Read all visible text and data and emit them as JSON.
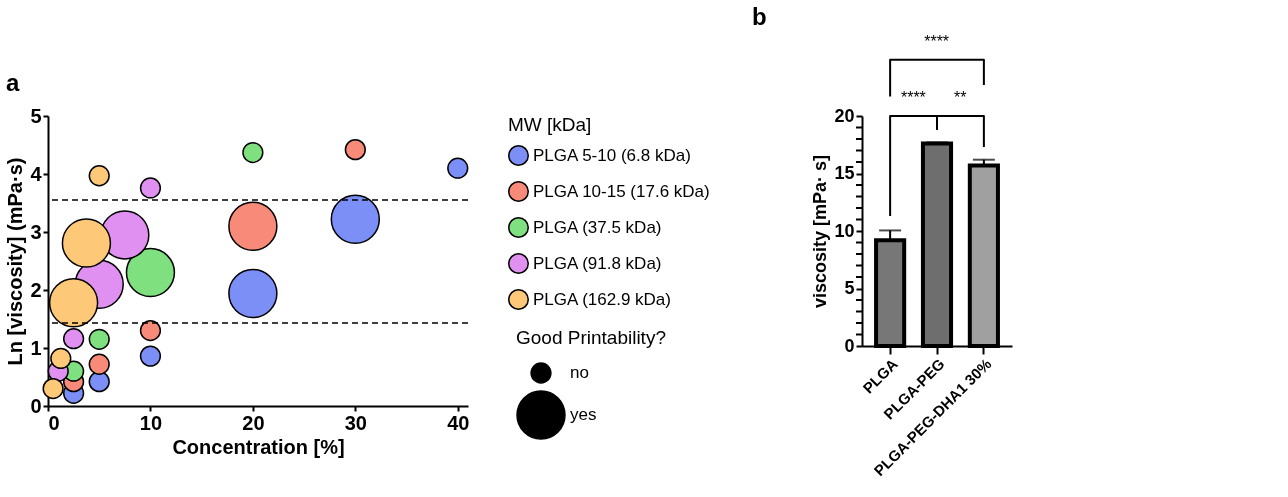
{
  "chart_data": [
    {
      "type": "bubble",
      "title": "a",
      "xlabel": "Concentration [%]",
      "ylabel": "Ln [viscosity] (mPa·s)",
      "legend_title": [
        "MW [kDa]",
        "Good Printability?"
      ],
      "legend": "right",
      "xlim": [
        0,
        41
      ],
      "xticks": [
        0,
        10,
        20,
        30,
        40
      ],
      "ylim": [
        0,
        5
      ],
      "yticks": [
        0,
        1,
        2,
        3,
        4,
        5
      ],
      "grid": false,
      "marker": "circle",
      "size_legend": [
        {
          "value": 0.17,
          "label": "no"
        },
        {
          "value": 1,
          "label": "yes"
        }
      ],
      "ref_lines": [
        {
          "axis": "y",
          "value": 3.55,
          "line_style": "dashed",
          "color": "#000000"
        },
        {
          "axis": "y",
          "value": 1.43,
          "line_style": "dashed",
          "color": "#000000"
        }
      ],
      "series": [
        {
          "name": "PLGA 5-10 (6.8 kDa)",
          "color": "#7b8ff7",
          "x": [
            2.5,
            5,
            10,
            20,
            30,
            40
          ],
          "values": [
            0.22,
            0.42,
            0.86,
            1.94,
            3.22,
            4.1
          ],
          "sizes": [
            0.17,
            0.17,
            0.17,
            1,
            1,
            0.17
          ]
        },
        {
          "name": "PLGA 10-15 (17.6 kDa)",
          "color": "#f78a78",
          "x": [
            2.5,
            5,
            10,
            20,
            30
          ],
          "values": [
            0.42,
            0.72,
            1.3,
            3.1,
            4.42
          ],
          "sizes": [
            0.17,
            0.17,
            0.17,
            1,
            0.17
          ]
        },
        {
          "name": "PLGA (37.5 kDa)",
          "color": "#7ee07e",
          "x": [
            2.5,
            5,
            10,
            20
          ],
          "values": [
            0.6,
            1.15,
            2.3,
            4.37
          ],
          "sizes": [
            0.17,
            0.17,
            1,
            0.17
          ]
        },
        {
          "name": "PLGA (91.8 kDa)",
          "color": "#df90f0",
          "x": [
            1,
            2.5,
            5,
            7.5,
            10
          ],
          "values": [
            0.6,
            1.16,
            2.1,
            2.95,
            3.76
          ],
          "sizes": [
            0.17,
            0.17,
            1,
            1,
            0.17
          ]
        },
        {
          "name": "PLGA (162.9 kDa)",
          "color": "#fdc878",
          "x": [
            0.5,
            1.25,
            2.5,
            3.75,
            5
          ],
          "values": [
            0.3,
            0.82,
            1.78,
            2.81,
            3.97
          ],
          "sizes": [
            0.17,
            0.17,
            1,
            1,
            0.17
          ]
        }
      ]
    },
    {
      "type": "bar",
      "title": "b",
      "ylabel": "viscosity [mPa· s]",
      "categories": [
        "PLGA",
        "PLGA-PEG",
        "PLGA-PEG-DHA1 30%"
      ],
      "values": [
        9.2,
        17.6,
        15.7
      ],
      "colors": [
        "#777777",
        "#6e6e6e",
        "#a0a0a0"
      ],
      "errors": [
        [
          9.2,
          10.05
        ],
        [
          17.6,
          17.7
        ],
        [
          15.7,
          16.2
        ]
      ],
      "ylim": [
        0,
        20
      ],
      "yticks": [
        0,
        {
          "value": 1,
          "label": null
        },
        {
          "value": 2,
          "label": null
        },
        {
          "value": 3,
          "label": null
        },
        {
          "value": 4,
          "label": null
        },
        5,
        {
          "value": 6,
          "label": null
        },
        {
          "value": 7,
          "label": null
        },
        {
          "value": 8,
          "label": null
        },
        {
          "value": 9,
          "label": null
        },
        10,
        {
          "value": 11,
          "label": null
        },
        {
          "value": 12,
          "label": null
        },
        {
          "value": 13,
          "label": null
        },
        {
          "value": 14,
          "label": null
        },
        15,
        {
          "value": 16,
          "label": null
        },
        {
          "value": 17,
          "label": null
        },
        {
          "value": 18,
          "label": null
        },
        {
          "value": 19,
          "label": null
        },
        20
      ],
      "grid": false,
      "legend": false,
      "annotations": [
        "****",
        "****",
        "**"
      ]
    }
  ]
}
